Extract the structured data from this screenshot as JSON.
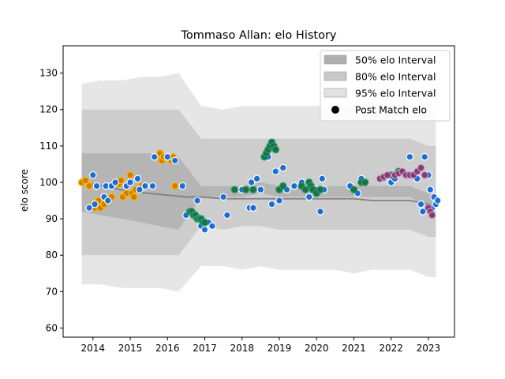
{
  "chart_data": {
    "type": "scatter",
    "title": "Tommaso Allan: elo History",
    "xlabel": "",
    "ylabel": "elo score",
    "xlim": [
      2013.2,
      2023.7
    ],
    "ylim": [
      57.5,
      137.5
    ],
    "xticks": [
      2014,
      2015,
      2016,
      2017,
      2018,
      2019,
      2020,
      2021,
      2022,
      2023
    ],
    "yticks": [
      60,
      70,
      80,
      90,
      100,
      110,
      120,
      130
    ],
    "legend": {
      "placement": "top-right",
      "entries": [
        "50% elo Interval",
        "80% elo Interval",
        "95% elo Interval",
        "Post Match elo"
      ]
    },
    "colors": {
      "interval_50": "#b0b0b0",
      "interval_80": "#c8c8c8",
      "interval_95": "#e2e2e2",
      "line": "#808080",
      "point_orange": "#d87a00",
      "point_blue": "#1a6fd6",
      "point_green": "#1f6e4a",
      "point_purple": "#8a3a6a"
    },
    "intervals": {
      "x": [
        2013.7,
        2014.2,
        2014.8,
        2015.3,
        2015.8,
        2016.3,
        2016.9,
        2017.5,
        2018.0,
        2018.5,
        2019.0,
        2019.5,
        2020.0,
        2020.5,
        2021.0,
        2021.5,
        2022.0,
        2022.5,
        2023.0,
        2023.2
      ],
      "p50": [
        [
          92,
          108
        ],
        [
          91,
          108
        ],
        [
          90,
          108
        ],
        [
          89,
          108
        ],
        [
          88,
          108
        ],
        [
          87,
          107
        ],
        [
          96,
          99
        ],
        [
          96,
          99
        ],
        [
          96,
          99
        ],
        [
          97,
          100
        ],
        [
          96,
          99
        ],
        [
          96,
          99
        ],
        [
          96,
          99
        ],
        [
          96,
          99
        ],
        [
          96,
          99
        ],
        [
          96,
          99
        ],
        [
          96,
          99
        ],
        [
          96,
          99
        ],
        [
          93,
          97
        ],
        [
          93,
          97
        ]
      ],
      "p80": [
        [
          80,
          120
        ],
        [
          80,
          120
        ],
        [
          80,
          120
        ],
        [
          80,
          120
        ],
        [
          80,
          120
        ],
        [
          80,
          120
        ],
        [
          88,
          112
        ],
        [
          87,
          112
        ],
        [
          88,
          112
        ],
        [
          88,
          112
        ],
        [
          87,
          112
        ],
        [
          87,
          112
        ],
        [
          87,
          112
        ],
        [
          87,
          112
        ],
        [
          87,
          112
        ],
        [
          87,
          112
        ],
        [
          87,
          112
        ],
        [
          87,
          112
        ],
        [
          85,
          110
        ],
        [
          85,
          110
        ]
      ],
      "p95": [
        [
          72,
          127
        ],
        [
          72,
          128
        ],
        [
          71,
          128
        ],
        [
          71,
          129
        ],
        [
          71,
          129
        ],
        [
          70,
          130
        ],
        [
          77,
          121
        ],
        [
          77,
          120
        ],
        [
          76,
          121
        ],
        [
          77,
          121
        ],
        [
          76,
          121
        ],
        [
          76,
          121
        ],
        [
          76,
          121
        ],
        [
          76,
          121
        ],
        [
          75,
          121
        ],
        [
          76,
          122
        ],
        [
          76,
          121
        ],
        [
          76,
          121
        ],
        [
          74,
          120
        ],
        [
          74,
          120
        ]
      ]
    },
    "line": {
      "x": [
        2013.7,
        2014.0,
        2014.5,
        2015.0,
        2015.5,
        2016.0,
        2016.5,
        2016.9,
        2017.5,
        2018.0,
        2018.5,
        2019.0,
        2019.5,
        2020.0,
        2020.5,
        2021.0,
        2021.5,
        2022.0,
        2022.5,
        2023.0,
        2023.2
      ],
      "y": [
        100,
        99.5,
        98.5,
        97.5,
        97,
        96.5,
        96,
        96,
        95.5,
        95.5,
        95.5,
        95.5,
        95.5,
        95.5,
        95.5,
        95.5,
        95,
        95,
        95,
        94,
        94
      ]
    },
    "series": [
      {
        "name": "orange",
        "x": [
          2013.7,
          2013.8,
          2013.9,
          2014.0,
          2014.05,
          2014.1,
          2014.15,
          2014.2,
          2014.3,
          2014.5,
          2014.6,
          2014.7,
          2014.75,
          2014.8,
          2014.9,
          2015.0,
          2015.05,
          2015.1,
          2015.15,
          2015.3,
          2015.7,
          2015.8,
          2015.85,
          2015.9,
          2016.1,
          2016.15,
          2016.2
        ],
        "y": [
          100,
          100.5,
          99,
          94,
          93,
          94.5,
          95,
          93,
          94,
          96,
          100,
          99.5,
          100.5,
          96,
          97,
          102,
          97,
          96,
          98,
          99,
          107,
          108,
          106,
          107,
          106,
          107,
          99
        ]
      },
      {
        "name": "blue",
        "x": [
          2013.9,
          2014.0,
          2014.05,
          2014.1,
          2014.3,
          2014.35,
          2014.4,
          2014.5,
          2014.6,
          2014.9,
          2015.0,
          2015.2,
          2015.25,
          2015.4,
          2015.6,
          2015.65,
          2016.0,
          2016.2,
          2016.4,
          2016.5,
          2016.8,
          2016.9,
          2017.0,
          2017.1,
          2017.2,
          2017.5,
          2017.6,
          2017.8,
          2018.0,
          2018.2,
          2018.25,
          2018.3,
          2018.4,
          2018.5,
          2018.7,
          2018.8,
          2018.9,
          2019.0,
          2019.1,
          2019.2,
          2019.4,
          2019.6,
          2019.8,
          2020.0,
          2020.1,
          2020.15,
          2020.2,
          2020.9,
          2021.1,
          2021.2,
          2021.8,
          2022.0,
          2022.1,
          2022.3,
          2022.5,
          2022.7,
          2022.8,
          2022.85,
          2022.9,
          2023.0,
          2023.05,
          2023.1,
          2023.15,
          2023.2,
          2023.25
        ],
        "y": [
          93,
          102,
          94,
          99,
          96,
          99,
          95,
          99,
          100,
          99,
          100,
          101,
          98,
          99,
          99,
          107,
          107,
          106,
          99,
          91,
          95,
          88,
          87,
          89,
          88,
          96,
          91,
          98,
          98,
          93,
          100,
          93,
          101,
          98,
          107,
          94,
          103,
          95,
          104,
          98,
          99,
          100,
          96,
          98,
          92,
          101,
          98,
          99,
          97,
          101,
          101,
          100,
          101,
          103,
          107,
          101,
          94,
          92,
          107,
          102,
          98,
          93,
          96,
          94,
          95
        ]
      },
      {
        "name": "green",
        "x": [
          2016.6,
          2016.65,
          2016.7,
          2016.75,
          2016.8,
          2016.85,
          2016.9,
          2016.95,
          2017.0,
          2017.8,
          2018.1,
          2018.3,
          2018.6,
          2018.65,
          2018.7,
          2018.75,
          2018.8,
          2018.85,
          2018.9,
          2019.0,
          2019.1,
          2019.6,
          2019.7,
          2019.8,
          2019.85,
          2019.9,
          2020.0,
          2020.1,
          2021.0,
          2021.2,
          2021.3,
          2022.0,
          2022.2
        ],
        "y": [
          92,
          92,
          91,
          91,
          90,
          90,
          90,
          89,
          89,
          98,
          98,
          98,
          107,
          108,
          109,
          110,
          111,
          110,
          109,
          98,
          99,
          99,
          98,
          100,
          99,
          98,
          97,
          98,
          98,
          100,
          100,
          102,
          103
        ]
      },
      {
        "name": "purple",
        "x": [
          2021.7,
          2021.8,
          2021.9,
          2022.1,
          2022.2,
          2022.3,
          2022.4,
          2022.5,
          2022.6,
          2022.7,
          2022.8,
          2022.9,
          2023.0,
          2023.05,
          2023.1
        ],
        "y": [
          101,
          101.5,
          102,
          102,
          102.5,
          103,
          102,
          102,
          102,
          103,
          104,
          102,
          93,
          92,
          91
        ]
      }
    ]
  }
}
